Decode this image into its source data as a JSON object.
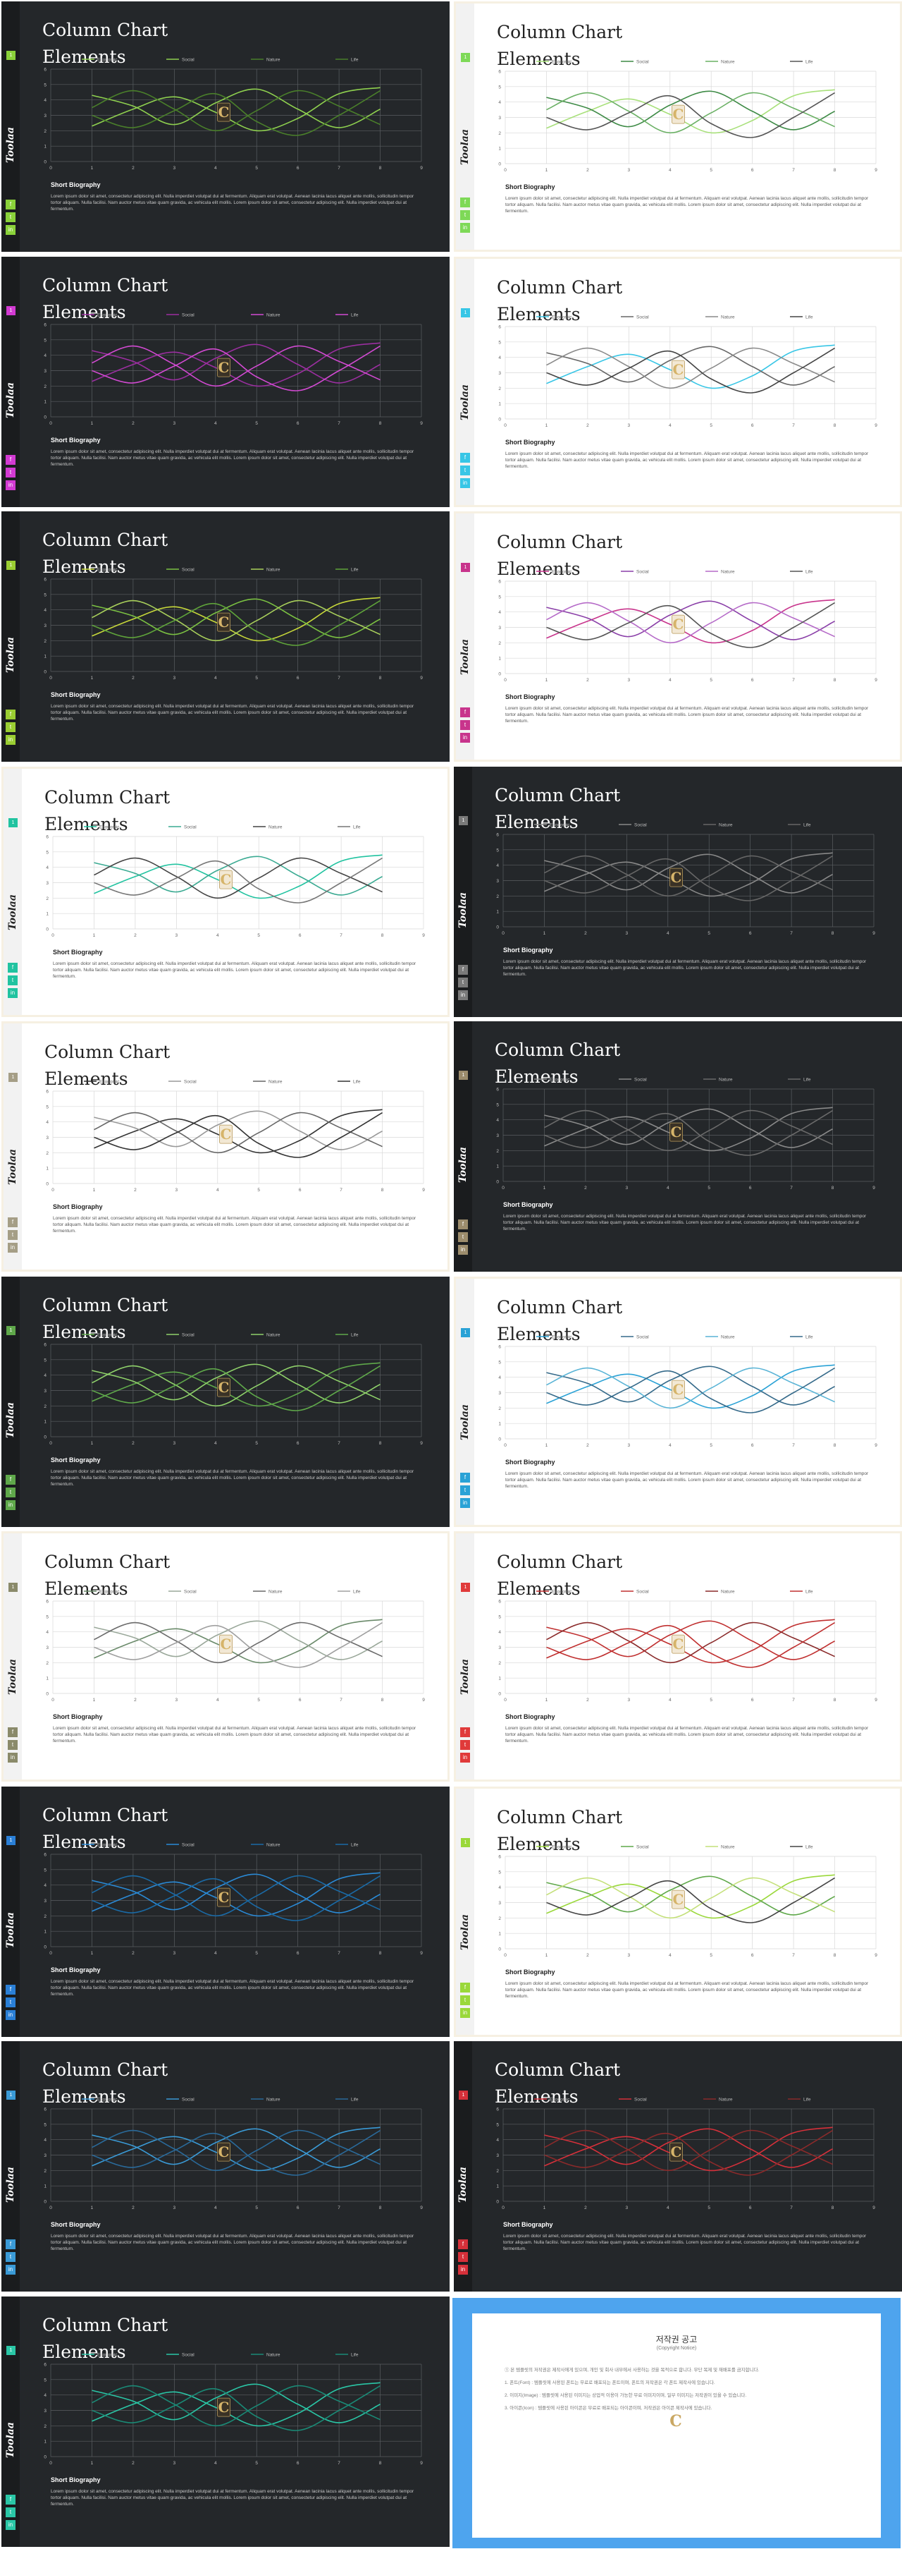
{
  "chart_data": {
    "type": "line",
    "x": [
      0,
      1,
      2,
      3,
      4,
      5,
      6,
      7,
      8,
      9
    ],
    "xlim": [
      0,
      9
    ],
    "ylim": [
      0,
      6
    ],
    "grid": true,
    "legend": "top-center",
    "smooth": true,
    "series": [
      {
        "name": "Economic",
        "values": [
          null,
          2.3,
          3.4,
          4.2,
          3.2,
          2.0,
          2.8,
          4.4,
          4.8,
          null
        ]
      },
      {
        "name": "Social",
        "values": [
          null,
          4.3,
          3.6,
          2.4,
          3.8,
          4.7,
          3.4,
          2.2,
          3.4,
          null
        ]
      },
      {
        "name": "Nature",
        "values": [
          null,
          3.5,
          4.6,
          3.4,
          2.0,
          3.3,
          4.6,
          3.6,
          2.4,
          null
        ]
      },
      {
        "name": "Life",
        "values": [
          null,
          3.0,
          2.2,
          3.3,
          4.4,
          2.6,
          1.7,
          3.0,
          4.6,
          null
        ]
      }
    ]
  },
  "slide_common": {
    "title": "Column Chart\nElements",
    "brand": "Toolaa",
    "bio_heading": "Short Biography",
    "bio_text": "Lorem ipsum dolor sit amet, consectetur adipiscing elit. Nulla imperdiet volutpat dui at fermentum. Aliquam erat volutpat. Aenean lacinia lacus aliquet ante mollis, sollicitudin tempor tortor aliquam. Nulla facilisi. Nam auctor metus vitae quam gravida, ac vehicula elit mollis. Lorem ipsum dolor sit amet, consectetur adipiscing elit. Nulla imperdiet volutpat dui at fermentum.",
    "logo_letter": "C",
    "social_icons": [
      "f",
      "t",
      "in"
    ],
    "marker_label": "1"
  },
  "slides": [
    {
      "theme": "dark",
      "accent": "#8ad13a",
      "lines": [
        "#8fd14f",
        "#8fd14f",
        "#4a7f2a",
        "#4a7f2a"
      ]
    },
    {
      "theme": "light",
      "accent": "#7ed957",
      "lines": [
        "#a8e07a",
        "#3d8a45",
        "#6ab064",
        "#555555"
      ]
    },
    {
      "theme": "dark",
      "accent": "#d23ad2",
      "lines": [
        "#9b2fa0",
        "#9b2fa0",
        "#d24ad2",
        "#d24ad2"
      ]
    },
    {
      "theme": "light",
      "accent": "#38c6e6",
      "lines": [
        "#38c6e6",
        "#666666",
        "#8a8a8a",
        "#444444"
      ]
    },
    {
      "theme": "dark",
      "accent": "#9acd32",
      "lines": [
        "#c7d83a",
        "#7bc142",
        "#a9d05b",
        "#5fa33a"
      ]
    },
    {
      "theme": "light",
      "accent": "#c8348c",
      "lines": [
        "#c8348c",
        "#8a3fa8",
        "#b56ac8",
        "#555555"
      ]
    },
    {
      "theme": "light",
      "accent": "#21c3a0",
      "lines": [
        "#21c3a0",
        "#3aaa92",
        "#444444",
        "#777777"
      ]
    },
    {
      "theme": "dark",
      "accent": "#7a7a7a",
      "lines": [
        "#888888",
        "#888888",
        "#666666",
        "#666666"
      ]
    },
    {
      "theme": "light",
      "accent": "#a59e86",
      "lines": [
        "#333333",
        "#999999",
        "#666666",
        "#333333"
      ]
    },
    {
      "theme": "dark",
      "accent": "#9c8c6c",
      "lines": [
        "#8a8a8a",
        "#8a8a8a",
        "#6a6a6a",
        "#6a6a6a"
      ]
    },
    {
      "theme": "dark",
      "accent": "#5fa84a",
      "lines": [
        "#5fa84a",
        "#8fd16a",
        "#8fd16a",
        "#5fa84a"
      ]
    },
    {
      "theme": "light",
      "accent": "#2aa2d6",
      "lines": [
        "#2aa2d6",
        "#356a8a",
        "#5ab4d6",
        "#356a8a"
      ]
    },
    {
      "theme": "light",
      "accent": "#8a8a6a",
      "lines": [
        "#6a8a6a",
        "#9aa89a",
        "#6a6a6a",
        "#a0a0a0"
      ]
    },
    {
      "theme": "light",
      "accent": "#e03a3a",
      "lines": [
        "#c03030",
        "#c03030",
        "#8a2a2a",
        "#c03030"
      ]
    },
    {
      "theme": "dark",
      "accent": "#2a7fd6",
      "lines": [
        "#2a8ad6",
        "#2a8ad6",
        "#1a6aa6",
        "#1a6aa6"
      ]
    },
    {
      "theme": "light",
      "accent": "#9ad83a",
      "lines": [
        "#9ad83a",
        "#5fa84a",
        "#c4e07a",
        "#444444"
      ]
    },
    {
      "theme": "dark",
      "accent": "#3a9ad6",
      "lines": [
        "#3a9ad6",
        "#3a9ad6",
        "#2a6a9a",
        "#2a6a9a"
      ]
    },
    {
      "theme": "dark",
      "accent": "#d6303a",
      "lines": [
        "#d6303a",
        "#d6303a",
        "#8a2a2a",
        "#8a2a2a"
      ]
    },
    {
      "theme": "dark",
      "accent": "#2ac6a6",
      "lines": [
        "#2ac6a6",
        "#2ac6a6",
        "#1a8a76",
        "#1a8a76"
      ]
    }
  ],
  "notice": {
    "title": "저작권 공고",
    "subtitle": "(Copyright Notice)",
    "logo_letter": "C",
    "paragraphs": [
      "① 본 템플릿의 저작권은 제작사에게 있으며, 개인 및 회사 내부에서 사용하는 것을 목적으로 합니다. 무단 복제 및 재배포를 금지합니다.",
      "1. 폰트(Font) : 템플릿에 사용된 폰트는 무료로 배포되는 폰트이며, 폰트의 저작권은 각 폰트 제작사에 있습니다.",
      "2. 이미지(Image) : 템플릿에 사용된 이미지는 상업적 이용이 가능한 무료 이미지이며, 일부 이미지는 저작권이 있을 수 있습니다.",
      "3. 아이콘(Icon) : 템플릿에 사용된 아이콘은 무료로 배포되는 아이콘이며, 저작권은 아이콘 제작사에 있습니다."
    ]
  }
}
